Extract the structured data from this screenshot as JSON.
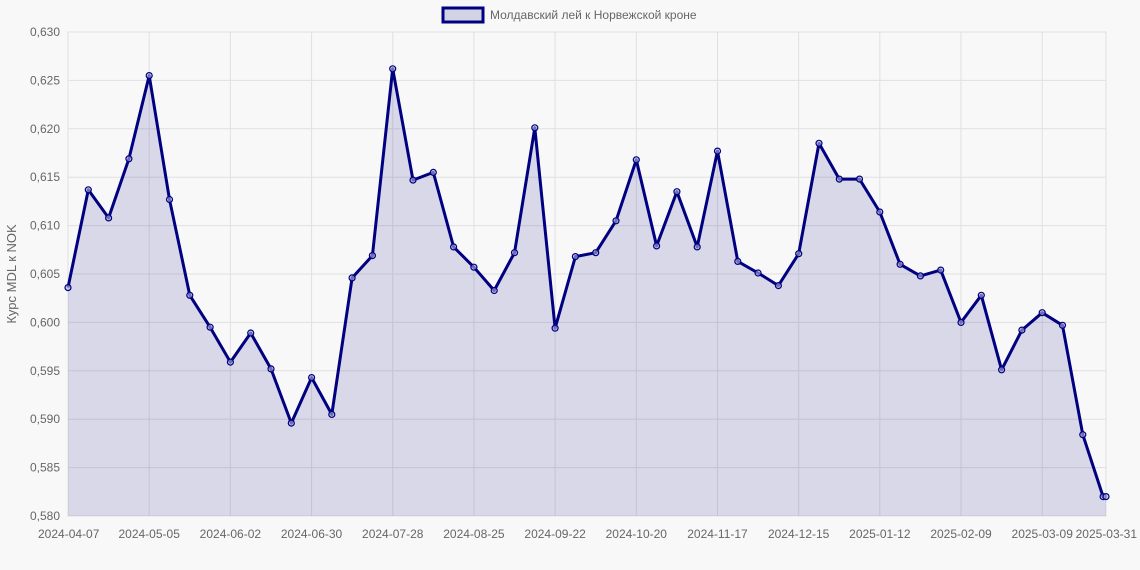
{
  "chart_data": {
    "type": "area",
    "legend": {
      "label": "Молдавский лей к Норвежской кроне",
      "position": "top"
    },
    "ylabel": "Курс MDL к NOK",
    "xlabel": "",
    "ylim": [
      0.58,
      0.63
    ],
    "yticks": [
      "0,630",
      "0,625",
      "0,620",
      "0,615",
      "0,610",
      "0,605",
      "0,600",
      "0,595",
      "0,590",
      "0,585",
      "0,580"
    ],
    "xticks": [
      "2024-04-07",
      "2024-05-05",
      "2024-06-02",
      "2024-06-30",
      "2024-07-28",
      "2024-08-25",
      "2024-09-22",
      "2024-10-20",
      "2024-11-17",
      "2024-12-15",
      "2025-01-12",
      "2025-02-09",
      "2025-03-09",
      "2025-03-31"
    ],
    "grid": true,
    "colors": {
      "line": "#000080",
      "fill": "rgba(0,0,128,0.13)",
      "grid": "#e0e0e0"
    },
    "series": [
      {
        "name": "Молдавский лей к Норвежской кроне",
        "x": [
          "2024-04-07",
          "2024-04-14",
          "2024-04-21",
          "2024-04-28",
          "2024-05-05",
          "2024-05-12",
          "2024-05-19",
          "2024-05-26",
          "2024-06-02",
          "2024-06-09",
          "2024-06-16",
          "2024-06-23",
          "2024-06-30",
          "2024-07-07",
          "2024-07-14",
          "2024-07-21",
          "2024-07-28",
          "2024-08-04",
          "2024-08-11",
          "2024-08-18",
          "2024-08-25",
          "2024-09-01",
          "2024-09-08",
          "2024-09-15",
          "2024-09-22",
          "2024-09-29",
          "2024-10-06",
          "2024-10-13",
          "2024-10-20",
          "2024-10-27",
          "2024-11-03",
          "2024-11-10",
          "2024-11-17",
          "2024-11-24",
          "2024-12-01",
          "2024-12-08",
          "2024-12-15",
          "2024-12-22",
          "2024-12-29",
          "2025-01-05",
          "2025-01-12",
          "2025-01-19",
          "2025-01-26",
          "2025-02-02",
          "2025-02-09",
          "2025-02-16",
          "2025-02-23",
          "2025-03-02",
          "2025-03-09",
          "2025-03-16",
          "2025-03-23",
          "2025-03-30",
          "2025-03-31"
        ],
        "values": [
          0.6036,
          0.6137,
          0.6108,
          0.6169,
          0.6255,
          0.6127,
          0.6028,
          0.5995,
          0.5959,
          0.5989,
          0.5952,
          0.5896,
          0.5943,
          0.5905,
          0.6046,
          0.6069,
          0.6262,
          0.6147,
          0.6155,
          0.6078,
          0.6057,
          0.6033,
          0.6072,
          0.6201,
          0.5994,
          0.6068,
          0.6072,
          0.6105,
          0.6168,
          0.6079,
          0.6135,
          0.6078,
          0.6177,
          0.6063,
          0.6051,
          0.6038,
          0.6071,
          0.6185,
          0.6148,
          0.6148,
          0.6114,
          0.606,
          0.6048,
          0.6054,
          0.6,
          0.6028,
          0.5951,
          0.5992,
          0.601,
          0.5997,
          0.5884,
          0.582,
          0.582
        ]
      }
    ]
  }
}
